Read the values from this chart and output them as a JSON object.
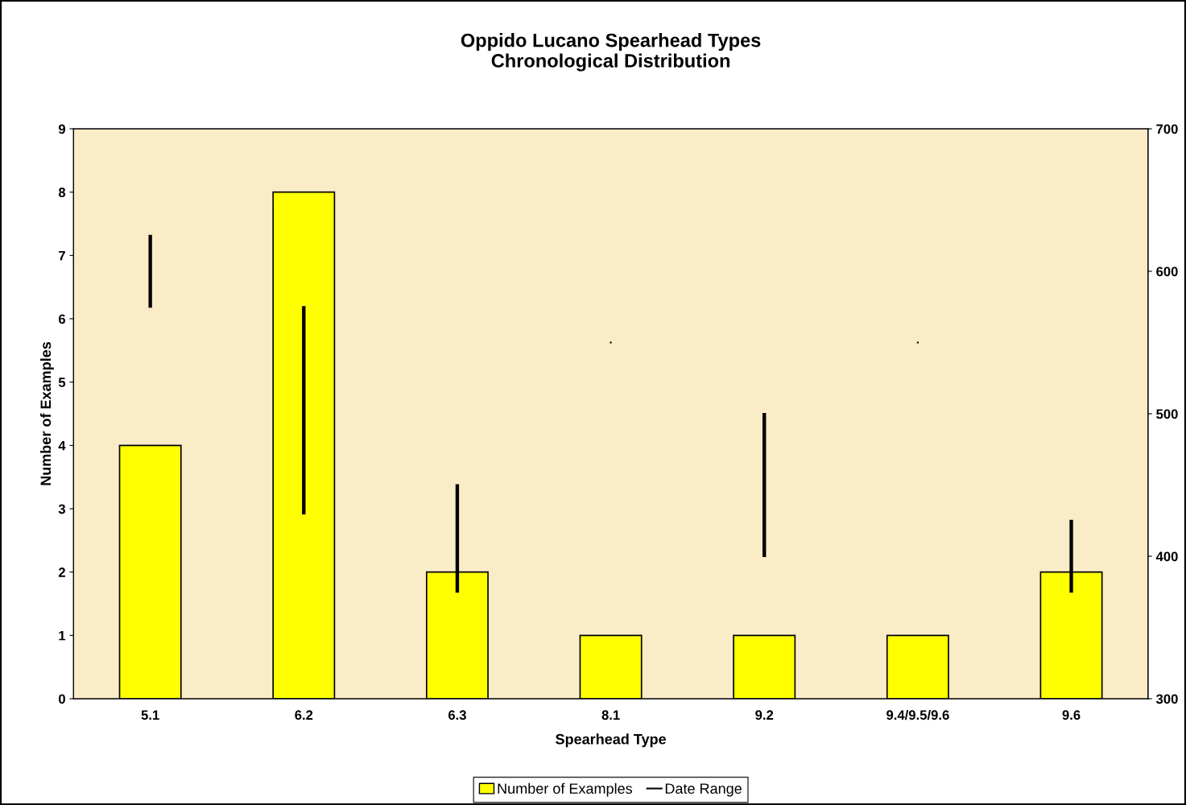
{
  "chart_data": {
    "type": "bar",
    "title": "Oppido Lucano Spearhead Types\nChronological Distribution",
    "xlabel": "Spearhead Type",
    "ylabel": "Number of Examples",
    "categories": [
      "5.1",
      "6.2",
      "6.3",
      "8.1",
      "9.2",
      "9.4/9.5/9.6",
      "9.6"
    ],
    "series": [
      {
        "name": "Number of Examples",
        "color": "#ffff00",
        "values": [
          4,
          8,
          2,
          1,
          1,
          1,
          2
        ]
      },
      {
        "name": "Date Range",
        "type": "bar",
        "axis": "y2",
        "color": "#000000",
        "base": [
          575,
          430,
          375,
          550,
          400,
          550,
          375
        ],
        "values": [
          50,
          145,
          75,
          0,
          100,
          0,
          50
        ]
      }
    ],
    "ylim": [
      0,
      9
    ],
    "yticks": [
      0,
      1,
      2,
      3,
      4,
      5,
      6,
      7,
      8,
      9
    ],
    "y2lim": [
      300,
      700
    ],
    "y2ticks": [
      300,
      400,
      500,
      600,
      700
    ],
    "grid": false,
    "legend": "bottom"
  }
}
